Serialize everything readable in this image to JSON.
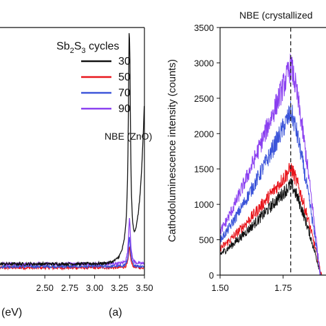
{
  "chart_data": [
    {
      "type": "line",
      "panel_label": "(a)",
      "xlabel_visible": "(eV)",
      "xlim": [
        2.05,
        3.5
      ],
      "x_ticks": [
        "2.50",
        "2.75",
        "3.00",
        "3.25",
        "3.50"
      ],
      "legend": {
        "title_base": "Sb",
        "title_sub1": "2",
        "title_mid": "S",
        "title_sub2": "3",
        "title_rest": " cycles",
        "placement": "top-right"
      },
      "annotation": "NBE (ZnO)",
      "series": [
        {
          "name": "30",
          "color": "#111111",
          "peak_x": 3.35,
          "peak_y": 0.92,
          "base": 0.045
        },
        {
          "name": "50",
          "color": "#e8141b",
          "peak_x": 3.35,
          "peak_y": 0.11,
          "base": 0.03
        },
        {
          "name": "70",
          "color": "#3b54d9",
          "peak_x": 3.35,
          "peak_y": 0.15,
          "base": 0.035
        },
        {
          "name": "90",
          "color": "#8a3ff0",
          "peak_x": 3.35,
          "peak_y": 0.23,
          "base": 0.045
        }
      ]
    },
    {
      "type": "line",
      "ylabel": "Cathodoluminescence intensity (counts)",
      "annotation": "NBE (crystallized",
      "xlim": [
        1.5,
        1.92
      ],
      "ylim": [
        0,
        3500
      ],
      "x_ticks": [
        "1.50",
        "1.75"
      ],
      "y_ticks": [
        "0",
        "500",
        "1000",
        "1500",
        "2000",
        "2500",
        "3000",
        "3500"
      ],
      "marker_x": 1.78,
      "series": [
        {
          "name": "30",
          "color": "#111111",
          "start": 300,
          "peak": 1280
        },
        {
          "name": "50",
          "color": "#e8141b",
          "start": 380,
          "peak": 1500
        },
        {
          "name": "70",
          "color": "#3b54d9",
          "start": 500,
          "peak": 2300
        },
        {
          "name": "90",
          "color": "#8a3ff0",
          "start": 620,
          "peak": 2950
        }
      ],
      "peak_x": 1.78
    }
  ]
}
